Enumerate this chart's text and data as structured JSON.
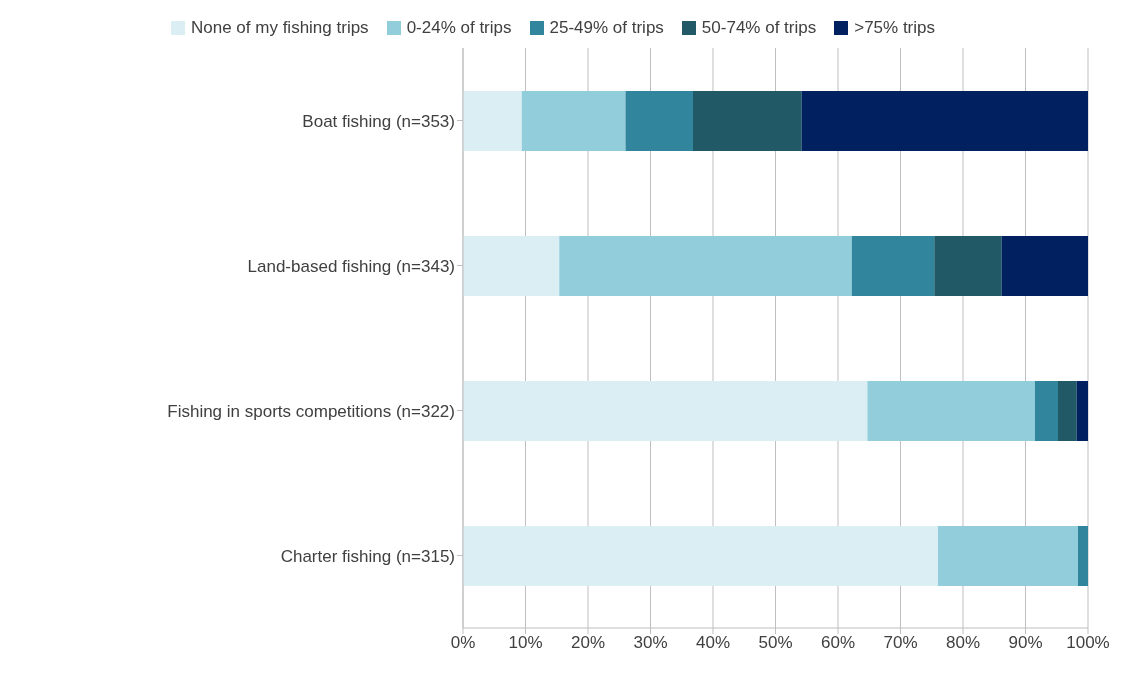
{
  "chart_data": {
    "type": "bar",
    "orientation": "horizontal",
    "stacked": true,
    "categories": [
      "Boat fishing (n=353)",
      "Land-based fishing (n=343)",
      "Fishing in sports competitions (n=322)",
      "Charter fishing (n=315)"
    ],
    "series": [
      {
        "name": "None of my fishing trips",
        "color": "#daeef3",
        "values": [
          9.4,
          15.4,
          64.7,
          76.0
        ]
      },
      {
        "name": "0-24% of trips",
        "color": "#92cddc",
        "values": [
          16.6,
          46.8,
          26.8,
          22.4
        ]
      },
      {
        "name": "25-49% of trips",
        "color": "#31859c",
        "values": [
          10.8,
          13.2,
          3.7,
          1.6
        ]
      },
      {
        "name": "50-74% of trips",
        "color": "#215967",
        "values": [
          17.4,
          10.8,
          3.0,
          0
        ]
      },
      {
        "name": ">75% trips",
        "color": "#002060",
        "values": [
          45.8,
          13.8,
          1.8,
          0
        ]
      }
    ],
    "xlim": [
      0,
      100
    ],
    "xticks": [
      {
        "value": 0,
        "label": "0%"
      },
      {
        "value": 10,
        "label": "10%"
      },
      {
        "value": 20,
        "label": "20%"
      },
      {
        "value": 30,
        "label": "30%"
      },
      {
        "value": 40,
        "label": "40%"
      },
      {
        "value": 50,
        "label": "50%"
      },
      {
        "value": 60,
        "label": "60%"
      },
      {
        "value": 70,
        "label": "70%"
      },
      {
        "value": 80,
        "label": "80%"
      },
      {
        "value": 90,
        "label": "90%"
      },
      {
        "value": 100,
        "label": "100%"
      }
    ],
    "grid": "x",
    "legend": "top"
  }
}
